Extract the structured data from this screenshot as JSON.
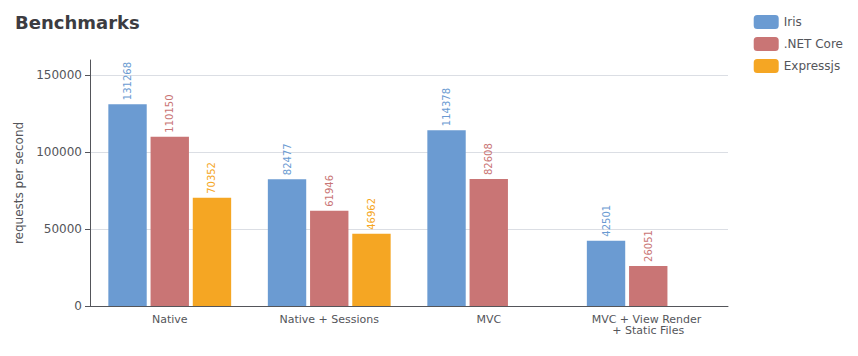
{
  "chart_data": {
    "type": "bar",
    "title": "Benchmarks",
    "categories": [
      "Native",
      "Native + Sessions",
      "MVC",
      "MVC + View Render + Static Files"
    ],
    "series": [
      {
        "name": "Iris",
        "color": "#6b9bd2",
        "values": [
          131268,
          82477,
          114378,
          42501
        ]
      },
      {
        "name": ".NET Core",
        "color": "#c97575",
        "values": [
          110150,
          61946,
          82608,
          26051
        ]
      },
      {
        "name": "Expressjs",
        "color": "#f5a623",
        "values": [
          70352,
          46962,
          0,
          0
        ],
        "value_labels": [
          "70352",
          "46962",
          null,
          null
        ]
      }
    ],
    "ylabel": "requests per second",
    "ylim": [
      0,
      160000
    ],
    "yticks": [
      0,
      50000,
      100000,
      150000
    ],
    "grid": true,
    "legend": "upper right",
    "data_labels": true
  }
}
